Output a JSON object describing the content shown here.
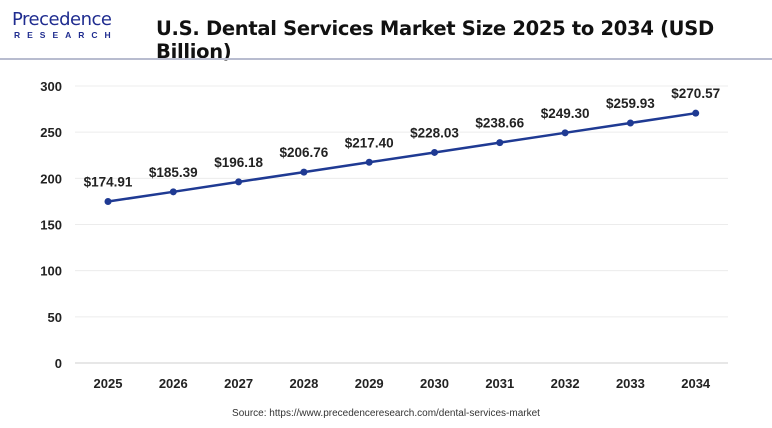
{
  "logo": {
    "line1": "Precedence",
    "line2": "RESEARCH"
  },
  "colors": {
    "line": "#1f3a93",
    "grid": "#ececec"
  },
  "chart_data": {
    "type": "line",
    "title": "U.S. Dental Services Market Size 2025 to 2034 (USD Billion)",
    "categories": [
      "2025",
      "2026",
      "2027",
      "2028",
      "2029",
      "2030",
      "2031",
      "2032",
      "2033",
      "2034"
    ],
    "values": [
      174.91,
      185.39,
      196.18,
      206.76,
      217.4,
      228.03,
      238.66,
      249.3,
      259.93,
      270.57
    ],
    "data_labels": [
      "$174.91",
      "$185.39",
      "$196.18",
      "$206.76",
      "$217.40",
      "$228.03",
      "$238.66",
      "$249.30",
      "$259.93",
      "$270.57"
    ],
    "ylim": [
      0,
      300
    ],
    "yticks": [
      0,
      50,
      100,
      150,
      200,
      250,
      300
    ],
    "grid": true,
    "xlabel": "",
    "ylabel": ""
  },
  "source": "Source: https://www.precedenceresearch.com/dental-services-market"
}
